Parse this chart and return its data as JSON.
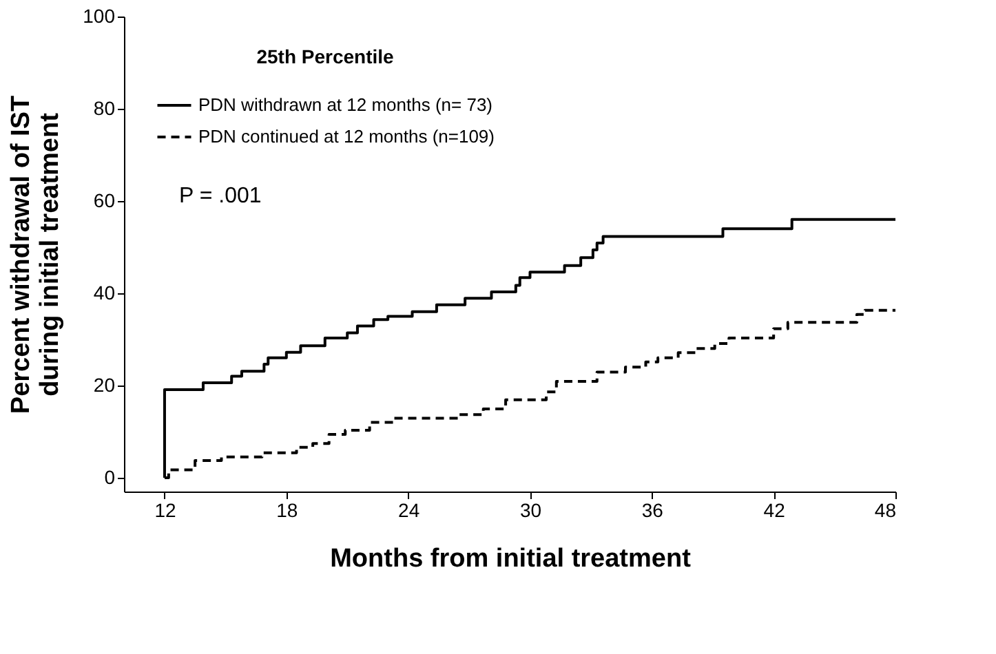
{
  "chart_data": {
    "type": "step",
    "xlabel": "Months from initial treatment",
    "ylabel": "Percent withdrawal of IST\nduring initial treatment",
    "legend_title": "25th Percentile",
    "annotations": [
      "P = .001"
    ],
    "xlim": [
      10,
      48
    ],
    "xticks": [
      12,
      18,
      24,
      30,
      36,
      42,
      48
    ],
    "ylim": [
      -3,
      100
    ],
    "yticks": [
      0,
      20,
      40,
      60,
      80,
      100
    ],
    "grid": false,
    "legend": "top left",
    "marker": "none",
    "series": [
      {
        "name": "PDN withdrawn at 12 months (n= 73)",
        "color": "#000000",
        "line_style": "solid",
        "x": [
          12,
          12,
          13.9,
          15.3,
          15.8,
          16.9,
          17.1,
          18,
          18.7,
          19.9,
          21,
          21.5,
          22.3,
          23,
          24.2,
          25.4,
          26.8,
          28.1,
          29.3,
          29.5,
          30,
          31.7,
          32.5,
          33.1,
          33.3,
          33.6,
          39.5,
          42.9,
          48
        ],
        "values": [
          0,
          19.1,
          20.6,
          22,
          23.1,
          24.6,
          26,
          27.2,
          28.6,
          30.3,
          31.4,
          32.9,
          34.3,
          35,
          36,
          37.5,
          38.9,
          40.3,
          41.7,
          43.4,
          44.6,
          46,
          47.7,
          49.4,
          50.9,
          52.3,
          54,
          56,
          56
        ]
      },
      {
        "name": "PDN continued at 12 months (n=109)",
        "color": "#000000",
        "line_style": "dashed",
        "x": [
          12,
          12.2,
          13.5,
          14.8,
          16.8,
          18.5,
          19.3,
          20.1,
          20.9,
          22.1,
          23.3,
          26.5,
          27.7,
          28.8,
          30.8,
          31.3,
          33.3,
          34.7,
          35.7,
          36.3,
          37.3,
          38.2,
          39.1,
          39.8,
          42,
          42.7,
          46.1,
          46.5,
          48
        ],
        "values": [
          0,
          1.7,
          3.7,
          4.5,
          5.4,
          6.6,
          7.4,
          9.4,
          10.3,
          12,
          12.9,
          13.7,
          14.9,
          16.9,
          18.6,
          20.9,
          22.9,
          24,
          25.1,
          26,
          27.1,
          28,
          29.1,
          30.3,
          32.3,
          33.7,
          35.4,
          36.3,
          36.3
        ]
      }
    ]
  }
}
